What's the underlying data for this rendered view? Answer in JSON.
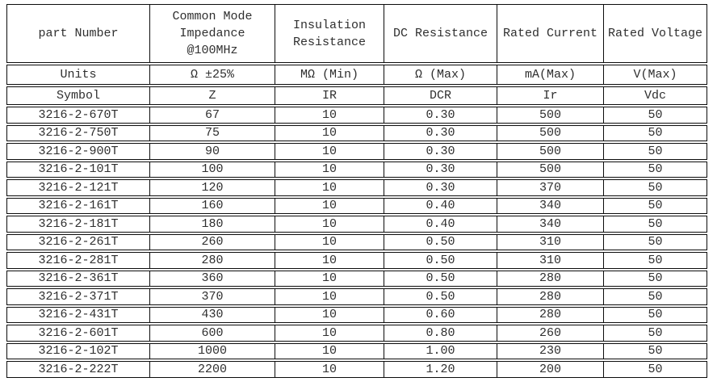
{
  "table": {
    "headers": [
      "part Number",
      "Common Mode\nImpedance\n@100MHz",
      "Insulation\nResistance",
      "DC Resistance",
      "Rated Current",
      "Rated Voltage"
    ],
    "units": {
      "label": "Units",
      "values": [
        "Ω ±25%",
        "MΩ (Min)",
        "Ω (Max)",
        "mA(Max)",
        "V(Max)"
      ]
    },
    "symbols": {
      "label": "Symbol",
      "values": [
        "Z",
        "IR",
        "DCR",
        "Ir",
        "Vdc"
      ]
    },
    "rows": [
      [
        "3216-2-670T",
        "67",
        "10",
        "0.30",
        "500",
        "50"
      ],
      [
        "3216-2-750T",
        "75",
        "10",
        "0.30",
        "500",
        "50"
      ],
      [
        "3216-2-900T",
        "90",
        "10",
        "0.30",
        "500",
        "50"
      ],
      [
        "3216-2-101T",
        "100",
        "10",
        "0.30",
        "500",
        "50"
      ],
      [
        "3216-2-121T",
        "120",
        "10",
        "0.30",
        "370",
        "50"
      ],
      [
        "3216-2-161T",
        "160",
        "10",
        "0.40",
        "340",
        "50"
      ],
      [
        "3216-2-181T",
        "180",
        "10",
        "0.40",
        "340",
        "50"
      ],
      [
        "3216-2-261T",
        "260",
        "10",
        "0.50",
        "310",
        "50"
      ],
      [
        "3216-2-281T",
        "280",
        "10",
        "0.50",
        "310",
        "50"
      ],
      [
        "3216-2-361T",
        "360",
        "10",
        "0.50",
        "280",
        "50"
      ],
      [
        "3216-2-371T",
        "370",
        "10",
        "0.50",
        "280",
        "50"
      ],
      [
        "3216-2-431T",
        "430",
        "10",
        "0.60",
        "280",
        "50"
      ],
      [
        "3216-2-601T",
        "600",
        "10",
        "0.80",
        "260",
        "50"
      ],
      [
        "3216-2-102T",
        "1000",
        "10",
        "1.00",
        "230",
        "50"
      ],
      [
        "3216-2-222T",
        "2200",
        "10",
        "1.20",
        "200",
        "50"
      ]
    ],
    "colors": {
      "border": "#0c0c0c",
      "text": "#2f2f2f",
      "background": "#ffffff"
    }
  }
}
